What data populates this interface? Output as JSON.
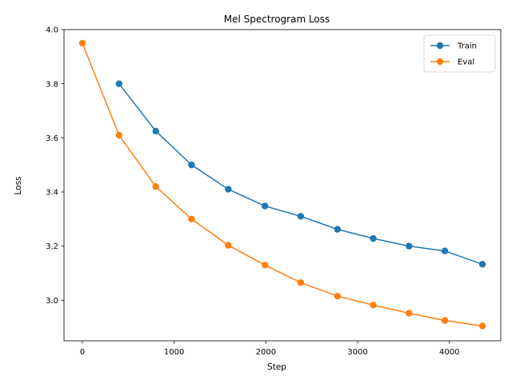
{
  "chart_data": {
    "type": "line",
    "title": "Mel Spectrogram Loss",
    "xlabel": "Step",
    "ylabel": "Loss",
    "xlim": [
      -200,
      4560
    ],
    "ylim": [
      2.85,
      4.0
    ],
    "x_ticks": [
      0,
      1000,
      2000,
      3000,
      4000
    ],
    "y_ticks": [
      3.0,
      3.2,
      3.4,
      3.6,
      3.8,
      4.0
    ],
    "x_tick_labels": [
      "0",
      "1000",
      "2000",
      "3000",
      "4000"
    ],
    "y_tick_labels": [
      "3.0",
      "3.2",
      "3.4",
      "3.6",
      "3.8",
      "4.0"
    ],
    "grid": false,
    "legend_position": "top-right",
    "series": [
      {
        "name": "Train",
        "color": "#1f77b4",
        "marker": "circle",
        "x": [
          400,
          800,
          1190,
          1590,
          1990,
          2380,
          2780,
          3170,
          3560,
          3950,
          4360
        ],
        "y": [
          3.8,
          3.625,
          3.5,
          3.41,
          3.348,
          3.31,
          3.262,
          3.228,
          3.2,
          3.182,
          3.133
        ]
      },
      {
        "name": "Eval",
        "color": "#ff7f0e",
        "marker": "circle",
        "x": [
          0,
          400,
          800,
          1190,
          1590,
          1990,
          2380,
          2780,
          3170,
          3560,
          3950,
          4360
        ],
        "y": [
          3.95,
          3.61,
          3.42,
          3.3,
          3.203,
          3.13,
          3.065,
          3.015,
          2.982,
          2.952,
          2.925,
          2.905
        ]
      }
    ]
  }
}
